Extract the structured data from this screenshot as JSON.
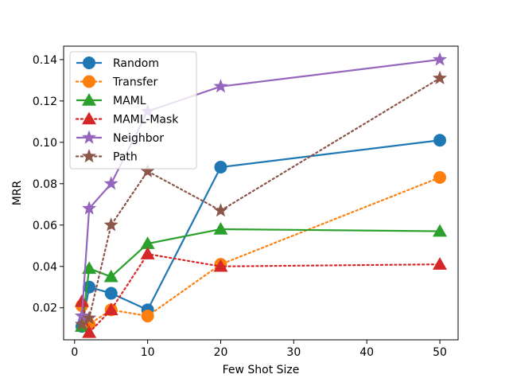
{
  "chart_data": {
    "type": "line",
    "title": "",
    "xlabel": "Few Shot Size",
    "ylabel": "MRR",
    "xlim": [
      -1.5,
      52.5
    ],
    "ylim": [
      0.0045,
      0.1465
    ],
    "x_ticks": [
      0,
      10,
      20,
      30,
      40,
      50
    ],
    "y_ticks": [
      0.02,
      0.04,
      0.06,
      0.08,
      0.1,
      0.12,
      0.14
    ],
    "y_tick_labels": [
      "0.02",
      "0.04",
      "0.06",
      "0.08",
      "0.10",
      "0.12",
      "0.14"
    ],
    "grid": false,
    "legend_position": "top-left",
    "series": [
      {
        "name": "Random",
        "color": "#1f77b4",
        "marker": "circle",
        "line": "solid",
        "x": [
          1,
          2,
          5,
          10,
          20,
          50
        ],
        "y": [
          0.011,
          0.03,
          0.027,
          0.019,
          0.088,
          0.101
        ]
      },
      {
        "name": "Transfer",
        "color": "#ff7f0e",
        "marker": "circle",
        "line": "dotted",
        "x": [
          1,
          2,
          5,
          10,
          20,
          50
        ],
        "y": [
          0.021,
          0.012,
          0.019,
          0.016,
          0.041,
          0.083
        ]
      },
      {
        "name": "MAML",
        "color": "#2ca02c",
        "marker": "triangle",
        "line": "solid",
        "x": [
          1,
          2,
          5,
          10,
          20,
          50
        ],
        "y": [
          0.011,
          0.039,
          0.035,
          0.051,
          0.058,
          0.057
        ]
      },
      {
        "name": "MAML-Mask",
        "color": "#d62728",
        "marker": "triangle",
        "line": "dotted",
        "x": [
          1,
          2,
          5,
          10,
          20,
          50
        ],
        "y": [
          0.023,
          0.008,
          0.019,
          0.046,
          0.04,
          0.041
        ]
      },
      {
        "name": "Neighbor",
        "color": "#9467bd",
        "marker": "star",
        "line": "solid",
        "x": [
          1,
          2,
          5,
          10,
          20,
          50
        ],
        "y": [
          0.016,
          0.068,
          0.08,
          0.115,
          0.127,
          0.14
        ]
      },
      {
        "name": "Path",
        "color": "#8c564b",
        "marker": "star",
        "line": "dotted",
        "x": [
          1,
          2,
          5,
          10,
          20,
          50
        ],
        "y": [
          0.012,
          0.015,
          0.06,
          0.086,
          0.067,
          0.131
        ]
      }
    ]
  }
}
